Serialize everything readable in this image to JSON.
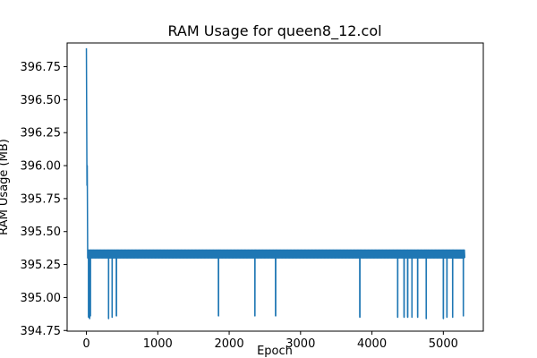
{
  "chart_data": {
    "type": "line",
    "title": "RAM Usage for queen8_12.col",
    "xlabel": "Epoch",
    "ylabel": "RAM Usage (MB)",
    "xlim": [
      -270,
      5560
    ],
    "ylim": [
      394.745,
      396.93
    ],
    "xticks": [
      0,
      1000,
      2000,
      3000,
      4000,
      5000
    ],
    "yticks": [
      394.75,
      395.0,
      395.25,
      395.5,
      395.75,
      396.0,
      396.25,
      396.5,
      396.75
    ],
    "ytick_labels": [
      "394.75",
      "395.00",
      "395.25",
      "395.50",
      "395.75",
      "396.00",
      "396.25",
      "396.50",
      "396.75"
    ],
    "grid": false,
    "legend": "none",
    "series": [
      {
        "color": "#1f77b4",
        "x_max": 5300,
        "band": [
          395.3,
          395.36
        ],
        "points": [
          [
            0,
            396.89
          ],
          [
            8,
            395.85
          ],
          [
            12,
            396.0
          ],
          [
            18,
            395.3
          ],
          [
            24,
            395.36
          ]
        ],
        "dips": [
          {
            "x": 30,
            "y": 394.85
          },
          {
            "x": 45,
            "y": 394.84
          },
          {
            "x": 55,
            "y": 394.86
          },
          {
            "x": 310,
            "y": 394.84
          },
          {
            "x": 360,
            "y": 394.85
          },
          {
            "x": 420,
            "y": 394.86
          },
          {
            "x": 1850,
            "y": 394.86
          },
          {
            "x": 2360,
            "y": 394.86
          },
          {
            "x": 2650,
            "y": 394.86
          },
          {
            "x": 3830,
            "y": 394.85
          },
          {
            "x": 4360,
            "y": 394.85
          },
          {
            "x": 4450,
            "y": 394.85
          },
          {
            "x": 4500,
            "y": 394.85
          },
          {
            "x": 4560,
            "y": 394.85
          },
          {
            "x": 4640,
            "y": 394.85
          },
          {
            "x": 4760,
            "y": 394.84
          },
          {
            "x": 5000,
            "y": 394.84
          },
          {
            "x": 5050,
            "y": 394.85
          },
          {
            "x": 5130,
            "y": 394.85
          },
          {
            "x": 5280,
            "y": 394.86
          }
        ]
      }
    ]
  }
}
